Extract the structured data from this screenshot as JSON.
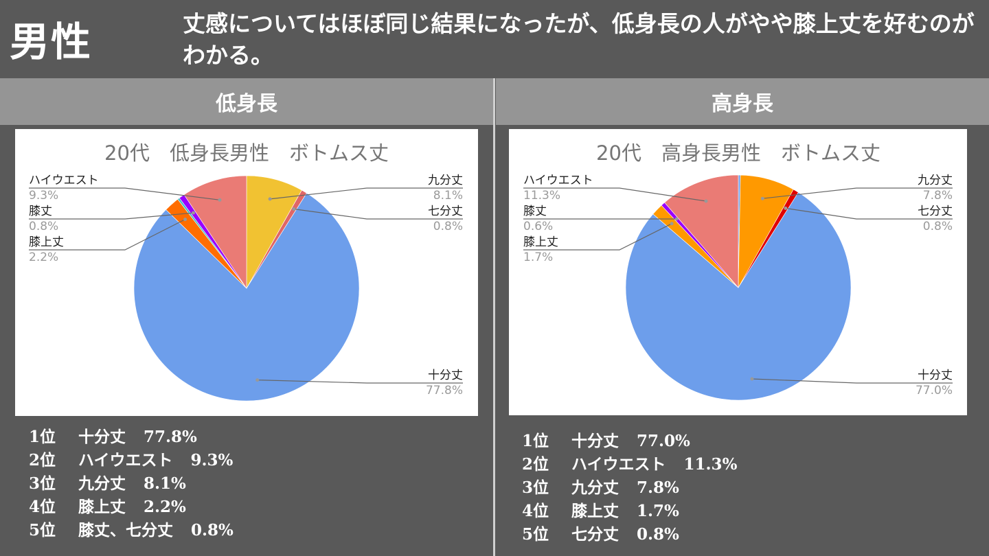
{
  "header": {
    "gender": "男性",
    "summary": "丈感についてはほぼ同じ結果になったが、低身長の人がやや膝上丈を好むのがわかる。"
  },
  "columns": {
    "left": "低身長",
    "right": "高身長"
  },
  "chart_data": [
    {
      "type": "pie",
      "title": "20代　低身長男性　ボトムス丈",
      "slices": [
        {
          "name": "九分丈",
          "value": 8.1,
          "label": "8.1%",
          "color": "#f1c232"
        },
        {
          "name": "七分丈",
          "value": 0.8,
          "label": "0.8%",
          "color": "#e06666"
        },
        {
          "name": "十分丈",
          "value": 77.8,
          "label": "77.8%",
          "color": "#6d9eeb"
        },
        {
          "name": "膝上丈",
          "value": 2.2,
          "label": "2.2%",
          "color": "#ff6d01"
        },
        {
          "name": "",
          "value": 0.3,
          "label": "",
          "color": "#46bdc6"
        },
        {
          "name": "膝丈",
          "value": 0.8,
          "label": "0.8%",
          "color": "#9900ff"
        },
        {
          "name": "ハイウエスト",
          "value": 9.3,
          "label": "9.3%",
          "color": "#ea7b75"
        }
      ]
    },
    {
      "type": "pie",
      "title": "20代　高身長男性　ボトムス丈",
      "slices": [
        {
          "name": "",
          "value": 0.3,
          "label": "",
          "color": "#6d9eeb"
        },
        {
          "name": "九分丈",
          "value": 7.8,
          "label": "7.8%",
          "color": "#ff9900"
        },
        {
          "name": "七分丈",
          "value": 0.8,
          "label": "0.8%",
          "color": "#e00000"
        },
        {
          "name": "十分丈",
          "value": 77.0,
          "label": "77.0%",
          "color": "#6d9eeb"
        },
        {
          "name": "膝上丈",
          "value": 1.7,
          "label": "1.7%",
          "color": "#ff9900"
        },
        {
          "name": "膝丈",
          "value": 0.6,
          "label": "0.6%",
          "color": "#9900ff"
        },
        {
          "name": "ハイウエスト",
          "value": 11.3,
          "label": "11.3%",
          "color": "#ea7b75"
        }
      ]
    }
  ],
  "rankings": {
    "left": [
      {
        "rank": "1位",
        "name": "十分丈",
        "value": "77.8%"
      },
      {
        "rank": "2位",
        "name": "ハイウエスト",
        "value": "9.3%"
      },
      {
        "rank": "3位",
        "name": "九分丈",
        "value": "8.1%"
      },
      {
        "rank": "4位",
        "name": "膝上丈",
        "value": "2.2%"
      },
      {
        "rank": "5位",
        "name": "膝丈、七分丈",
        "value": "0.8%"
      }
    ],
    "right": [
      {
        "rank": "1位",
        "name": "十分丈",
        "value": "77.0%"
      },
      {
        "rank": "2位",
        "name": "ハイウエスト",
        "value": "11.3%"
      },
      {
        "rank": "3位",
        "name": "九分丈",
        "value": "7.8%"
      },
      {
        "rank": "4位",
        "name": "膝上丈",
        "value": "1.7%"
      },
      {
        "rank": "5位",
        "name": "七分丈",
        "value": "0.8%"
      }
    ]
  }
}
